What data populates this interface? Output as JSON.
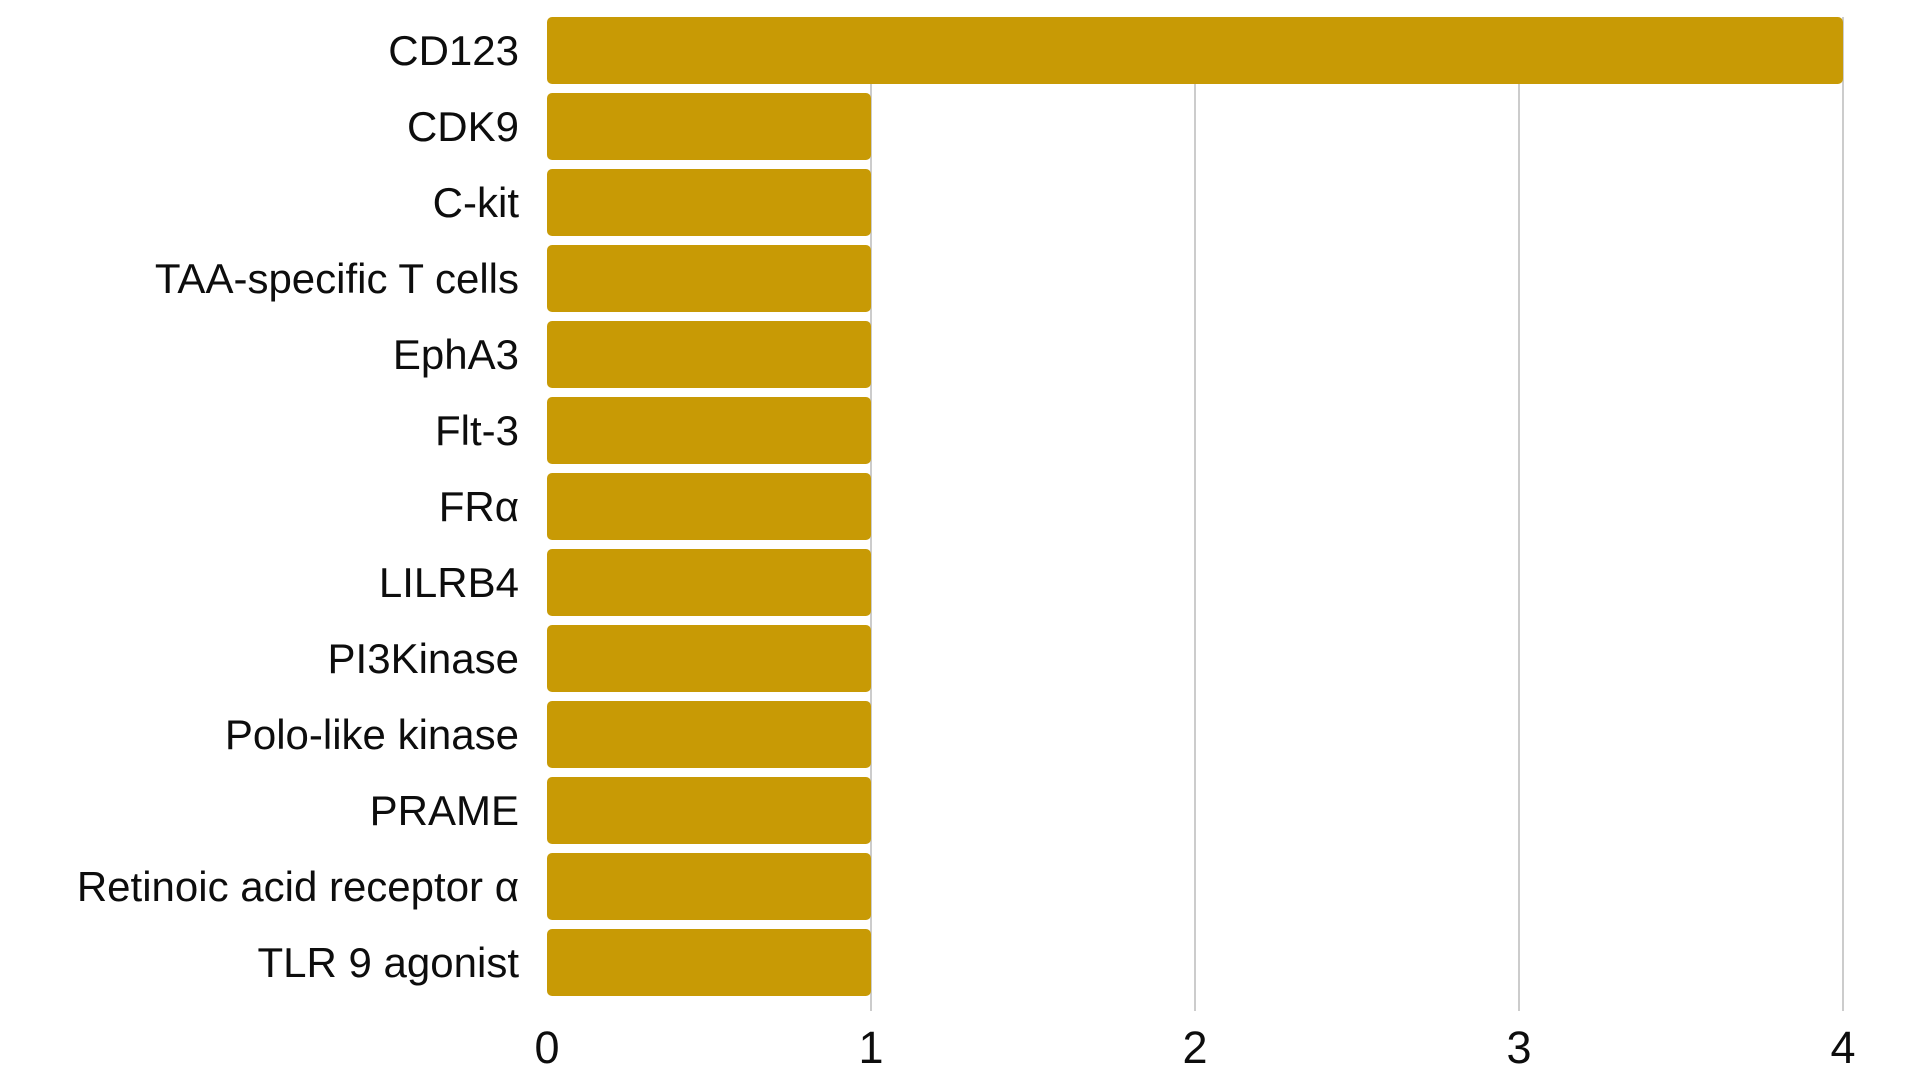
{
  "chart_data": {
    "type": "bar",
    "orientation": "horizontal",
    "title": "",
    "xlabel": "",
    "ylabel": "",
    "categories": [
      "CD123",
      "CDK9",
      "C-kit",
      "TAA-specific T cells",
      "EphA3",
      "Flt-3",
      "FRα",
      "LILRB4",
      "PI3Kinase",
      "Polo-like kinase",
      "PRAME",
      "Retinoic acid receptor α",
      "TLR 9 agonist"
    ],
    "values": [
      4,
      1,
      1,
      1,
      1,
      1,
      1,
      1,
      1,
      1,
      1,
      1,
      1
    ],
    "xlim": [
      0,
      4
    ],
    "xticks": [
      0,
      1,
      2,
      3,
      4
    ],
    "grid": "vertical gridlines at x = 1, 2, 3, 4",
    "legend_position": "none",
    "bar_color": "#C8159A05",
    "colors": {
      "bar": "#C89A05",
      "gridline": "#CCCCCC",
      "text": "#0D0D0D",
      "background": "#FFFFFF"
    }
  }
}
